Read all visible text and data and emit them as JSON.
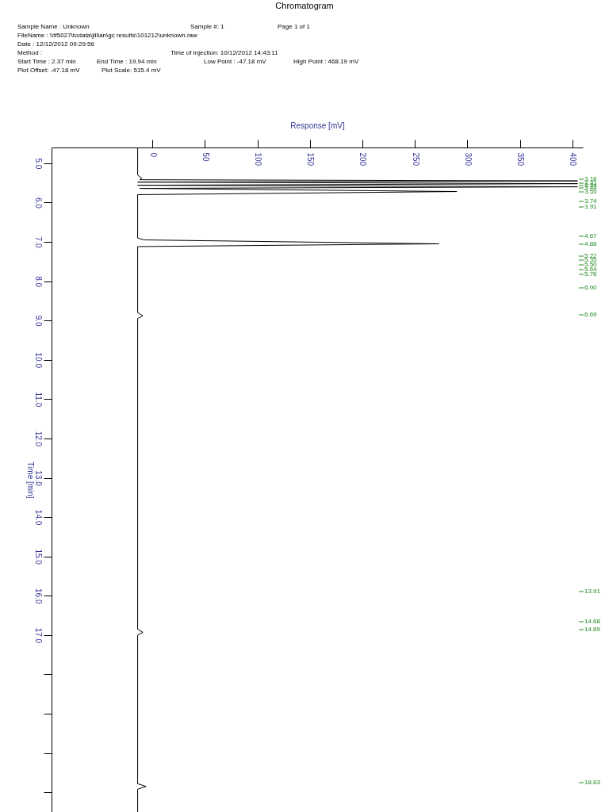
{
  "chart_data": {
    "type": "line",
    "title": "Chromatogram",
    "xlabel": "Response [mV]",
    "ylabel": "Time [min]",
    "xlim": [
      -96,
      410
    ],
    "xticks": [
      0,
      50,
      100,
      150,
      200,
      250,
      300,
      350,
      400
    ],
    "ylim": [
      21.5,
      4.6
    ],
    "yticks": [
      {
        "value": 5,
        "label": "5.0"
      },
      {
        "value": 6,
        "label": "6.0"
      },
      {
        "value": 7,
        "label": "7.0"
      },
      {
        "value": 8,
        "label": "8.0"
      },
      {
        "value": 9,
        "label": "9.0"
      },
      {
        "value": 10,
        "label": "10.0"
      },
      {
        "value": 11,
        "label": "11.0"
      },
      {
        "value": 12,
        "label": "12.0"
      },
      {
        "value": 13,
        "label": "13.0"
      },
      {
        "value": 14,
        "label": "14.0"
      },
      {
        "value": 15,
        "label": "15.0"
      },
      {
        "value": 16,
        "label": "16.0"
      },
      {
        "value": 17,
        "label": "17.0"
      },
      {
        "value": 18,
        "label": null
      },
      {
        "value": 19,
        "label": null
      },
      {
        "value": 20,
        "label": null
      },
      {
        "value": 21,
        "label": null
      }
    ],
    "grid": false,
    "legend": false,
    "marker": "none",
    "line_style": "solid",
    "series": [
      {
        "color": "#000000",
        "x": [
          -14,
          -14,
          -10,
          -12,
          405,
          -14,
          405,
          -14,
          405,
          -12,
          290,
          -14,
          -14,
          -8,
          273,
          -14,
          -14,
          -9,
          -14,
          -14,
          -9,
          -14,
          -14,
          -6,
          -14,
          -14
        ],
        "values": [
          4.6,
          5.3,
          5.38,
          5.42,
          5.45,
          5.48,
          5.52,
          5.56,
          5.6,
          5.64,
          5.72,
          5.8,
          6.9,
          6.95,
          7.05,
          7.12,
          8.8,
          8.88,
          8.95,
          16.85,
          16.93,
          17.0,
          20.78,
          20.85,
          20.92,
          21.5
        ]
      }
    ],
    "annotations": [
      "Sample Name : Unknown",
      "Sample #: 1",
      "Page 1 of 1",
      "FileName    : \\\\tf5027\\todata\\jillian\\gc results\\101212\\unknown.raw",
      "Date : 12/12/2012 09:29:56",
      "Method     :",
      "Time of Injection: 10/12/2012 14:43:11",
      "Start Time  : 2.37 min",
      "End Time   : 19.94 min",
      "Low Point : -47.18 mV",
      "High Point : 468.19 mV",
      "Plot Offset: -47.18 mV",
      "Plot Scale: 515.4 mV",
      "3.18",
      "3.31",
      "3.34",
      "3.44",
      "3.55",
      "3.74",
      "3.91",
      "4.67",
      "4.88",
      "5.22",
      "5.35",
      "5.50",
      "5.64",
      "5.76",
      "6.00",
      "6.69",
      "13.91",
      "14.68",
      "14.89",
      "18.83"
    ]
  }
}
